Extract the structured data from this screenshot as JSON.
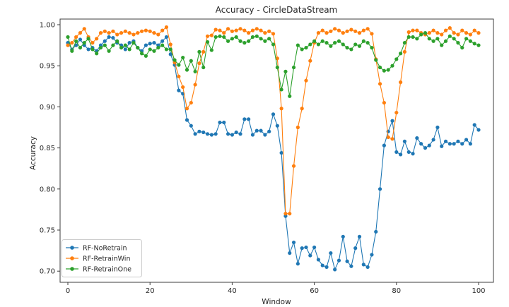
{
  "chart_data": {
    "type": "line",
    "title": "Accuracy - CircleDataStream",
    "xlabel": "Window",
    "ylabel": "Accuracy",
    "x_range": [
      0,
      100
    ],
    "ylim": [
      0.686,
      1.007
    ],
    "x_ticks": [
      0,
      20,
      40,
      60,
      80,
      100
    ],
    "y_ticks": [
      "0.70",
      "0.75",
      "0.80",
      "0.85",
      "0.90",
      "0.95",
      "1.00"
    ],
    "grid": false,
    "marker": "circle",
    "legend_position": "lower-left",
    "series": [
      {
        "name": "RF-NoRetrain",
        "color": "#1f77b4",
        "values": [
          0.978,
          0.97,
          0.975,
          0.982,
          0.975,
          0.97,
          0.972,
          0.968,
          0.975,
          0.98,
          0.985,
          0.984,
          0.978,
          0.975,
          0.97,
          0.978,
          0.98,
          0.972,
          0.968,
          0.975,
          0.977,
          0.978,
          0.975,
          0.98,
          0.985,
          0.964,
          0.951,
          0.92,
          0.916,
          0.884,
          0.877,
          0.867,
          0.87,
          0.869,
          0.867,
          0.866,
          0.867,
          0.881,
          0.881,
          0.867,
          0.866,
          0.869,
          0.867,
          0.885,
          0.885,
          0.866,
          0.871,
          0.871,
          0.866,
          0.87,
          0.891,
          0.877,
          0.844,
          0.767,
          0.722,
          0.735,
          0.709,
          0.728,
          0.729,
          0.719,
          0.729,
          0.714,
          0.707,
          0.705,
          0.722,
          0.702,
          0.713,
          0.742,
          0.712,
          0.706,
          0.728,
          0.742,
          0.708,
          0.705,
          0.72,
          0.748,
          0.8,
          0.853,
          0.87,
          0.883,
          0.845,
          0.842,
          0.858,
          0.845,
          0.843,
          0.862,
          0.855,
          0.85,
          0.853,
          0.86,
          0.875,
          0.852,
          0.858,
          0.855,
          0.855,
          0.858,
          0.855,
          0.86,
          0.855,
          0.878,
          0.872
        ]
      },
      {
        "name": "RF-RetrainWin",
        "color": "#ff7f0e",
        "values": [
          0.975,
          0.978,
          0.985,
          0.99,
          0.995,
          0.985,
          0.978,
          0.983,
          0.99,
          0.992,
          0.99,
          0.992,
          0.988,
          0.99,
          0.992,
          0.99,
          0.988,
          0.99,
          0.992,
          0.993,
          0.992,
          0.99,
          0.988,
          0.993,
          0.997,
          0.976,
          0.954,
          0.937,
          0.924,
          0.898,
          0.905,
          0.927,
          0.953,
          0.967,
          0.986,
          0.987,
          0.994,
          0.993,
          0.99,
          0.995,
          0.992,
          0.993,
          0.995,
          0.993,
          0.99,
          0.993,
          0.995,
          0.993,
          0.99,
          0.992,
          0.989,
          0.959,
          0.898,
          0.77,
          0.77,
          0.828,
          0.875,
          0.898,
          0.932,
          0.956,
          0.978,
          0.99,
          0.993,
          0.99,
          0.992,
          0.995,
          0.993,
          0.99,
          0.992,
          0.994,
          0.992,
          0.99,
          0.993,
          0.995,
          0.989,
          0.958,
          0.928,
          0.905,
          0.863,
          0.861,
          0.893,
          0.93,
          0.967,
          0.991,
          0.993,
          0.993,
          0.99,
          0.988,
          0.99,
          0.993,
          0.99,
          0.988,
          0.993,
          0.996,
          0.99,
          0.988,
          0.993,
          0.99,
          0.988,
          0.993,
          0.99
        ]
      },
      {
        "name": "RF-RetrainOne",
        "color": "#2ca02c",
        "values": [
          0.985,
          0.968,
          0.98,
          0.972,
          0.978,
          0.983,
          0.97,
          0.965,
          0.972,
          0.975,
          0.968,
          0.975,
          0.98,
          0.972,
          0.975,
          0.97,
          0.978,
          0.972,
          0.965,
          0.962,
          0.97,
          0.968,
          0.972,
          0.975,
          0.97,
          0.97,
          0.957,
          0.951,
          0.96,
          0.945,
          0.956,
          0.943,
          0.967,
          0.948,
          0.979,
          0.969,
          0.985,
          0.986,
          0.985,
          0.98,
          0.983,
          0.985,
          0.98,
          0.978,
          0.98,
          0.985,
          0.986,
          0.983,
          0.98,
          0.983,
          0.976,
          0.948,
          0.921,
          0.943,
          0.913,
          0.948,
          0.975,
          0.97,
          0.972,
          0.976,
          0.98,
          0.976,
          0.98,
          0.978,
          0.974,
          0.978,
          0.98,
          0.976,
          0.972,
          0.97,
          0.976,
          0.974,
          0.98,
          0.978,
          0.972,
          0.957,
          0.948,
          0.944,
          0.945,
          0.95,
          0.958,
          0.965,
          0.978,
          0.985,
          0.985,
          0.983,
          0.988,
          0.99,
          0.983,
          0.98,
          0.983,
          0.975,
          0.98,
          0.986,
          0.983,
          0.978,
          0.972,
          0.983,
          0.98,
          0.977,
          0.975
        ]
      }
    ]
  }
}
